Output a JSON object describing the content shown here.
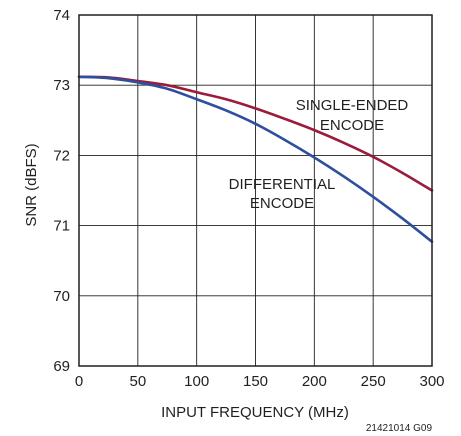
{
  "chart_data": {
    "type": "line",
    "xlabel": "INPUT FREQUENCY (MHz)",
    "ylabel": "SNR (dBFS)",
    "xlim": [
      0,
      300
    ],
    "ylim": [
      69,
      74
    ],
    "xticks": [
      0,
      50,
      100,
      150,
      200,
      250,
      300
    ],
    "yticks": [
      69,
      70,
      71,
      72,
      73,
      74
    ],
    "grid": true,
    "series": [
      {
        "name": "SINGLE-ENDED ENCODE",
        "color": "#9b1b3a",
        "x": [
          0,
          25,
          50,
          75,
          100,
          125,
          150,
          175,
          200,
          225,
          250,
          275,
          300
        ],
        "y": [
          73.12,
          73.11,
          73.06,
          73.0,
          72.9,
          72.8,
          72.67,
          72.52,
          72.36,
          72.18,
          71.98,
          71.75,
          71.5
        ]
      },
      {
        "name": "DIFFERENTIAL ENCODE",
        "color": "#2e4f9e",
        "x": [
          0,
          25,
          50,
          75,
          100,
          125,
          150,
          175,
          200,
          225,
          250,
          275,
          300
        ],
        "y": [
          73.12,
          73.1,
          73.04,
          72.95,
          72.8,
          72.64,
          72.45,
          72.22,
          71.97,
          71.7,
          71.41,
          71.1,
          70.77
        ]
      }
    ],
    "annotations": {
      "single_line1": "SINGLE-ENDED",
      "single_line2": "ENCODE",
      "diff_line1": "DIFFERENTIAL",
      "diff_line2": "ENCODE"
    },
    "figure_id": "21421014 G09"
  }
}
